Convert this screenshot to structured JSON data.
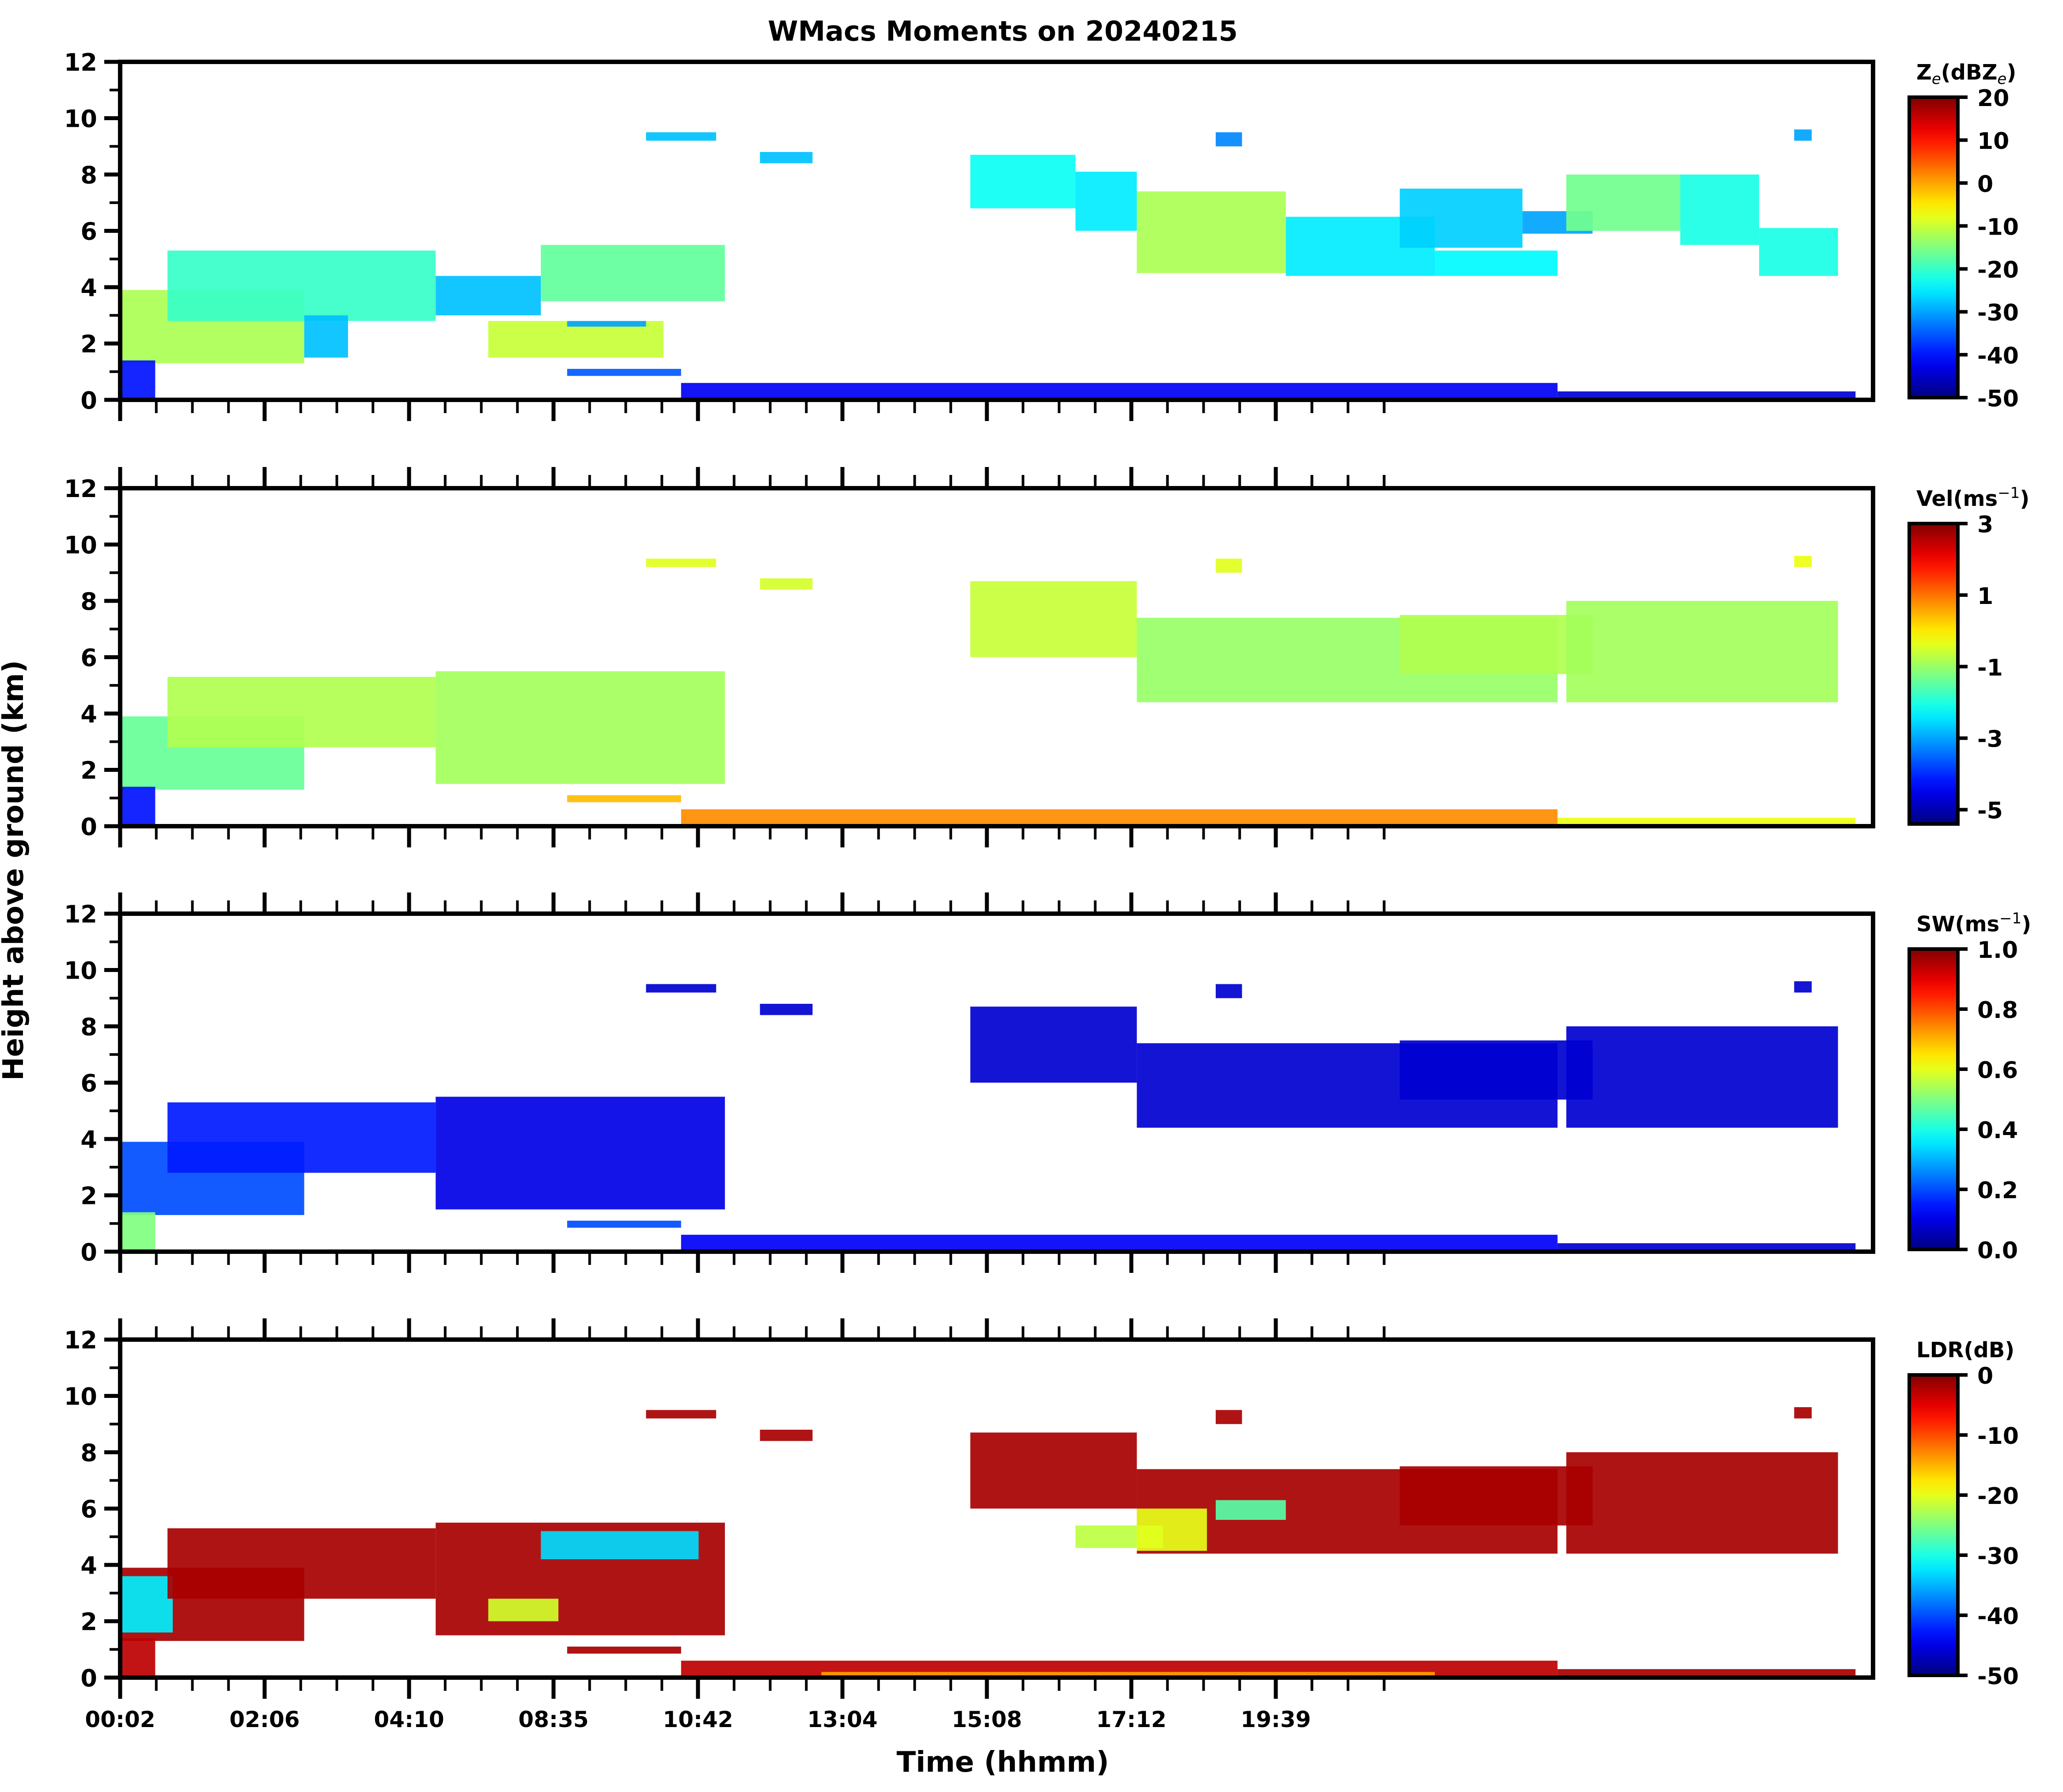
{
  "chart_data": [
    {
      "type": "heatmap",
      "panel": "reflectivity",
      "title": "WMacs Moments on 20240215",
      "colorbar_label": "Ze(dBZe)",
      "colorbar_label_parts": {
        "base": "Z",
        "sub": "e",
        "mid": "(dBZ",
        "sub2": "e",
        "end": ")"
      },
      "colormap": "jet",
      "clim": [
        -50,
        20
      ],
      "colorbar_ticks": [
        20,
        10,
        0,
        -10,
        -20,
        -30,
        -40,
        -50
      ],
      "ylim": [
        0,
        12
      ],
      "yticks": [
        0,
        2,
        4,
        6,
        8,
        10,
        12
      ],
      "regions": [
        {
          "t": [
            0.0,
            0.105
          ],
          "z": [
            1.3,
            3.9
          ],
          "v": -12
        },
        {
          "t": [
            0.027,
            0.18
          ],
          "z": [
            2.8,
            5.3
          ],
          "v": -20
        },
        {
          "t": [
            0.105,
            0.13
          ],
          "z": [
            1.5,
            3.0
          ],
          "v": -28
        },
        {
          "t": [
            0.18,
            0.24
          ],
          "z": [
            3.0,
            4.4
          ],
          "v": -28
        },
        {
          "t": [
            0.21,
            0.31
          ],
          "z": [
            1.5,
            2.8
          ],
          "v": -10
        },
        {
          "t": [
            0.24,
            0.345
          ],
          "z": [
            3.5,
            5.5
          ],
          "v": -17
        },
        {
          "t": [
            0.255,
            0.3
          ],
          "z": [
            2.6,
            2.8
          ],
          "v": -30
        },
        {
          "t": [
            0.0,
            0.02
          ],
          "z": [
            0.0,
            1.4
          ],
          "v": -40
        },
        {
          "t": [
            0.255,
            0.32
          ],
          "z": [
            0.85,
            1.1
          ],
          "v": -35
        },
        {
          "t": [
            0.3,
            0.34
          ],
          "z": [
            9.2,
            9.5
          ],
          "v": -28
        },
        {
          "t": [
            0.365,
            0.395
          ],
          "z": [
            8.4,
            8.8
          ],
          "v": -28
        },
        {
          "t": [
            0.485,
            0.545
          ],
          "z": [
            6.8,
            8.7
          ],
          "v": -23
        },
        {
          "t": [
            0.545,
            0.58
          ],
          "z": [
            6.0,
            8.1
          ],
          "v": -25
        },
        {
          "t": [
            0.58,
            0.665
          ],
          "z": [
            4.5,
            7.4
          ],
          "v": -12
        },
        {
          "t": [
            0.665,
            0.75
          ],
          "z": [
            4.4,
            6.5
          ],
          "v": -25
        },
        {
          "t": [
            0.75,
            0.82
          ],
          "z": [
            4.4,
            5.3
          ],
          "v": -24
        },
        {
          "t": [
            0.625,
            0.64
          ],
          "z": [
            9.0,
            9.5
          ],
          "v": -32
        },
        {
          "t": [
            0.73,
            0.8
          ],
          "z": [
            5.4,
            7.5
          ],
          "v": -27
        },
        {
          "t": [
            0.8,
            0.84
          ],
          "z": [
            5.9,
            6.7
          ],
          "v": -30
        },
        {
          "t": [
            0.825,
            0.89
          ],
          "z": [
            6.0,
            8.0
          ],
          "v": -16
        },
        {
          "t": [
            0.89,
            0.935
          ],
          "z": [
            5.5,
            8.0
          ],
          "v": -22
        },
        {
          "t": [
            0.935,
            0.98
          ],
          "z": [
            4.4,
            6.1
          ],
          "v": -22
        },
        {
          "t": [
            0.955,
            0.965
          ],
          "z": [
            9.2,
            9.6
          ],
          "v": -30
        },
        {
          "t": [
            0.32,
            0.82
          ],
          "z": [
            0.0,
            0.6
          ],
          "v": -42
        },
        {
          "t": [
            0.82,
            0.99
          ],
          "z": [
            0.0,
            0.3
          ],
          "v": -44
        }
      ]
    },
    {
      "type": "heatmap",
      "panel": "velocity",
      "colorbar_label": "Vel(ms-1)",
      "colorbar_label_parts": {
        "base": "Vel(ms",
        "sup": "−1",
        "end": ")"
      },
      "colormap": "jet",
      "clim": [
        -5.4,
        3
      ],
      "colorbar_ticks": [
        3,
        1,
        -1,
        -3,
        -5
      ],
      "ylim": [
        0,
        12
      ],
      "yticks": [
        0,
        2,
        4,
        6,
        8,
        10,
        12
      ],
      "regions": [
        {
          "t": [
            0.0,
            0.105
          ],
          "z": [
            1.3,
            3.9
          ],
          "v": -1.4
        },
        {
          "t": [
            0.027,
            0.18
          ],
          "z": [
            2.8,
            5.3
          ],
          "v": -0.8
        },
        {
          "t": [
            0.18,
            0.345
          ],
          "z": [
            1.5,
            5.5
          ],
          "v": -0.9
        },
        {
          "t": [
            0.0,
            0.02
          ],
          "z": [
            0.0,
            1.4
          ],
          "v": -4.2
        },
        {
          "t": [
            0.255,
            0.32
          ],
          "z": [
            0.85,
            1.1
          ],
          "v": 0.4
        },
        {
          "t": [
            0.3,
            0.34
          ],
          "z": [
            9.2,
            9.5
          ],
          "v": -0.4
        },
        {
          "t": [
            0.365,
            0.395
          ],
          "z": [
            8.4,
            8.8
          ],
          "v": -0.5
        },
        {
          "t": [
            0.485,
            0.58
          ],
          "z": [
            6.0,
            8.7
          ],
          "v": -0.6
        },
        {
          "t": [
            0.58,
            0.82
          ],
          "z": [
            4.4,
            7.4
          ],
          "v": -1.0
        },
        {
          "t": [
            0.625,
            0.64
          ],
          "z": [
            9.0,
            9.5
          ],
          "v": -0.4
        },
        {
          "t": [
            0.73,
            0.84
          ],
          "z": [
            5.4,
            7.5
          ],
          "v": -0.8
        },
        {
          "t": [
            0.825,
            0.98
          ],
          "z": [
            4.4,
            8.0
          ],
          "v": -0.9
        },
        {
          "t": [
            0.955,
            0.965
          ],
          "z": [
            9.2,
            9.6
          ],
          "v": -0.3
        },
        {
          "t": [
            0.32,
            0.82
          ],
          "z": [
            0.0,
            0.6
          ],
          "v": 0.8
        },
        {
          "t": [
            0.82,
            0.99
          ],
          "z": [
            0.0,
            0.3
          ],
          "v": -0.3
        }
      ]
    },
    {
      "type": "heatmap",
      "panel": "spectrum_width",
      "colorbar_label": "SW(ms-1)",
      "colorbar_label_parts": {
        "base": "SW(ms",
        "sup": "−1",
        "end": ")"
      },
      "colormap": "jet",
      "clim": [
        0.0,
        1.0
      ],
      "colorbar_ticks": [
        1.0,
        0.8,
        0.6,
        0.4,
        0.2,
        0.0
      ],
      "ylim": [
        0,
        12
      ],
      "yticks": [
        0,
        2,
        4,
        6,
        8,
        10,
        12
      ],
      "regions": [
        {
          "t": [
            0.0,
            0.105
          ],
          "z": [
            1.3,
            3.9
          ],
          "v": 0.2
        },
        {
          "t": [
            0.027,
            0.18
          ],
          "z": [
            2.8,
            5.3
          ],
          "v": 0.15
        },
        {
          "t": [
            0.18,
            0.345
          ],
          "z": [
            1.5,
            5.5
          ],
          "v": 0.1
        },
        {
          "t": [
            0.0,
            0.02
          ],
          "z": [
            0.0,
            1.4
          ],
          "v": 0.5
        },
        {
          "t": [
            0.255,
            0.32
          ],
          "z": [
            0.85,
            1.1
          ],
          "v": 0.2
        },
        {
          "t": [
            0.3,
            0.34
          ],
          "z": [
            9.2,
            9.5
          ],
          "v": 0.08
        },
        {
          "t": [
            0.365,
            0.395
          ],
          "z": [
            8.4,
            8.8
          ],
          "v": 0.08
        },
        {
          "t": [
            0.485,
            0.58
          ],
          "z": [
            6.0,
            8.7
          ],
          "v": 0.08
        },
        {
          "t": [
            0.58,
            0.82
          ],
          "z": [
            4.4,
            7.4
          ],
          "v": 0.08
        },
        {
          "t": [
            0.625,
            0.64
          ],
          "z": [
            9.0,
            9.5
          ],
          "v": 0.08
        },
        {
          "t": [
            0.73,
            0.84
          ],
          "z": [
            5.4,
            7.5
          ],
          "v": 0.08
        },
        {
          "t": [
            0.825,
            0.98
          ],
          "z": [
            4.4,
            8.0
          ],
          "v": 0.08
        },
        {
          "t": [
            0.955,
            0.965
          ],
          "z": [
            9.2,
            9.6
          ],
          "v": 0.08
        },
        {
          "t": [
            0.32,
            0.82
          ],
          "z": [
            0.0,
            0.6
          ],
          "v": 0.12
        },
        {
          "t": [
            0.82,
            0.99
          ],
          "z": [
            0.0,
            0.3
          ],
          "v": 0.08
        }
      ]
    },
    {
      "type": "heatmap",
      "panel": "ldr",
      "colorbar_label": "LDR(dB)",
      "colormap": "jet",
      "clim": [
        -50,
        0
      ],
      "colorbar_ticks": [
        0,
        -10,
        -20,
        -30,
        -40,
        -50
      ],
      "ylim": [
        0,
        12
      ],
      "yticks": [
        0,
        2,
        4,
        6,
        8,
        10,
        12
      ],
      "regions": [
        {
          "t": [
            0.0,
            0.105
          ],
          "z": [
            1.3,
            3.9
          ],
          "v": -2
        },
        {
          "t": [
            0.0,
            0.03
          ],
          "z": [
            1.6,
            3.6
          ],
          "v": -32
        },
        {
          "t": [
            0.027,
            0.18
          ],
          "z": [
            2.8,
            5.3
          ],
          "v": -2
        },
        {
          "t": [
            0.18,
            0.345
          ],
          "z": [
            1.5,
            5.5
          ],
          "v": -2
        },
        {
          "t": [
            0.21,
            0.25
          ],
          "z": [
            2.0,
            2.8
          ],
          "v": -21
        },
        {
          "t": [
            0.24,
            0.33
          ],
          "z": [
            4.2,
            5.2
          ],
          "v": -33
        },
        {
          "t": [
            0.0,
            0.02
          ],
          "z": [
            0.0,
            1.4
          ],
          "v": -3
        },
        {
          "t": [
            0.255,
            0.32
          ],
          "z": [
            0.85,
            1.1
          ],
          "v": -2
        },
        {
          "t": [
            0.3,
            0.34
          ],
          "z": [
            9.2,
            9.5
          ],
          "v": -2
        },
        {
          "t": [
            0.365,
            0.395
          ],
          "z": [
            8.4,
            8.8
          ],
          "v": -2
        },
        {
          "t": [
            0.485,
            0.58
          ],
          "z": [
            6.0,
            8.7
          ],
          "v": -2
        },
        {
          "t": [
            0.58,
            0.82
          ],
          "z": [
            4.4,
            7.4
          ],
          "v": -2
        },
        {
          "t": [
            0.545,
            0.595
          ],
          "z": [
            4.6,
            5.4
          ],
          "v": -22
        },
        {
          "t": [
            0.58,
            0.62
          ],
          "z": [
            4.5,
            6.0
          ],
          "v": -20
        },
        {
          "t": [
            0.625,
            0.665
          ],
          "z": [
            5.6,
            6.3
          ],
          "v": -27
        },
        {
          "t": [
            0.625,
            0.64
          ],
          "z": [
            9.0,
            9.5
          ],
          "v": -2
        },
        {
          "t": [
            0.73,
            0.84
          ],
          "z": [
            5.4,
            7.5
          ],
          "v": -2
        },
        {
          "t": [
            0.825,
            0.98
          ],
          "z": [
            4.4,
            8.0
          ],
          "v": -2
        },
        {
          "t": [
            0.955,
            0.965
          ],
          "z": [
            9.2,
            9.6
          ],
          "v": -2
        },
        {
          "t": [
            0.32,
            0.82
          ],
          "z": [
            0.0,
            0.6
          ],
          "v": -3
        },
        {
          "t": [
            0.4,
            0.75
          ],
          "z": [
            0.0,
            0.2
          ],
          "v": -14
        },
        {
          "t": [
            0.82,
            0.99
          ],
          "z": [
            0.0,
            0.3
          ],
          "v": -2
        }
      ]
    }
  ],
  "figure": {
    "title": "WMacs Moments on 20240215",
    "xlabel": "Time (hhmm)",
    "ylabel": "Height above ground (km)",
    "xticks": [
      "00:02",
      "02:06",
      "04:10",
      "08:35",
      "10:42",
      "13:04",
      "15:08",
      "17:12",
      "19:39"
    ],
    "minor_ticks_per_major": 4
  }
}
